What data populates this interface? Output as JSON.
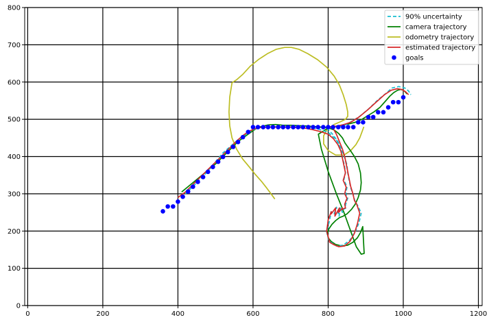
{
  "chart_data": {
    "type": "line",
    "title": "",
    "xlabel": "",
    "ylabel": "",
    "xlim": [
      -8,
      1210
    ],
    "ylim": [
      0,
      800
    ],
    "xticks": [
      0,
      200,
      400,
      600,
      800,
      1000,
      1200
    ],
    "yticks": [
      0,
      100,
      200,
      300,
      400,
      500,
      600,
      700,
      800
    ],
    "xtick_labels": [
      "0",
      "200",
      "400",
      "600",
      "800",
      "1000",
      "1200"
    ],
    "ytick_labels": [
      "0",
      "100",
      "200",
      "300",
      "400",
      "500",
      "600",
      "700",
      "800"
    ],
    "grid": true,
    "legend_position": "top-right",
    "series": [
      {
        "name": "90% uncertainty",
        "kind": "line",
        "style": "dashed",
        "color": "#17becf",
        "x": [
          420,
          470,
          520,
          560,
          585,
          600,
          620,
          660,
          700,
          740,
          770,
          800,
          822,
          834,
          838,
          843,
          846,
          842,
          850,
          847,
          852,
          846,
          848,
          840,
          838,
          833,
          829,
          822,
          816,
          808,
          804,
          800,
          798,
          796,
          802,
          810,
          822,
          840,
          858,
          872,
          882,
          888,
          878,
          872,
          866,
          860,
          856,
          852,
          850,
          844,
          836,
          826,
          812,
          796,
          812,
          828,
          844,
          862,
          884,
          908,
          932,
          952,
          970,
          988,
          1004,
          1014,
          1020
        ],
        "y": [
          300,
          350,
          410,
          445,
          462,
          472,
          478,
          480,
          479,
          478,
          475,
          465,
          445,
          420,
          397,
          378,
          358,
          338,
          318,
          300,
          288,
          270,
          262,
          258,
          250,
          262,
          240,
          264,
          246,
          252,
          230,
          214,
          204,
          198,
          172,
          168,
          160,
          162,
          176,
          198,
          222,
          248,
          270,
          278,
          300,
          316,
          336,
          356,
          378,
          397,
          418,
          440,
          460,
          477,
          479,
          480,
          484,
          494,
          508,
          528,
          552,
          568,
          584,
          588,
          584,
          576,
          566
        ]
      },
      {
        "name": "camera trajectory",
        "kind": "line",
        "style": "solid",
        "color": "#008000",
        "x": [
          410,
          440,
          470,
          500,
          520,
          540,
          560,
          580,
          598,
          610,
          620,
          640,
          660,
          680,
          700,
          720,
          740,
          760,
          780,
          800,
          815,
          828,
          838,
          845,
          858,
          870,
          880,
          886,
          888,
          886,
          880,
          872,
          862,
          850,
          840,
          830,
          820,
          810,
          802,
          798,
          800,
          808,
          820,
          836,
          852,
          866,
          878,
          886,
          892,
          896,
          888,
          875,
          860,
          842,
          822,
          800,
          782,
          774,
          802,
          828,
          852,
          872,
          890,
          906,
          922,
          938,
          952,
          964,
          975,
          985,
          993,
          1000,
          1005,
          1010
        ],
        "y": [
          305,
          330,
          355,
          380,
          400,
          420,
          440,
          455,
          468,
          476,
          480,
          485,
          486,
          484,
          484,
          483,
          482,
          481,
          479,
          477,
          472,
          462,
          450,
          436,
          418,
          400,
          380,
          356,
          330,
          310,
          290,
          272,
          258,
          246,
          240,
          236,
          228,
          218,
          206,
          194,
          182,
          172,
          164,
          160,
          162,
          170,
          182,
          196,
          212,
          140,
          138,
          158,
          200,
          250,
          300,
          360,
          420,
          460,
          478,
          483,
          487,
          492,
          500,
          510,
          520,
          532,
          548,
          562,
          572,
          578,
          580,
          578,
          574,
          568
        ]
      },
      {
        "name": "odometry trajectory",
        "kind": "line",
        "style": "solid",
        "color": "#bcbd22",
        "x": [
          658,
          648,
          636,
          622,
          606,
          590,
          572,
          556,
          544,
          538,
          536,
          538,
          544,
          556,
          572,
          592,
          614,
          638,
          662,
          684,
          702,
          722,
          746,
          772,
          796,
          816,
          830,
          840,
          848,
          852,
          852,
          846,
          834,
          816,
          798,
          788,
          788,
          800,
          820,
          842,
          860,
          874,
          884,
          890,
          895
        ],
        "y": [
          286,
          300,
          316,
          334,
          352,
          372,
          394,
          420,
          450,
          482,
          520,
          560,
          598,
          606,
          620,
          642,
          660,
          676,
          688,
          693,
          693,
          688,
          676,
          660,
          640,
          616,
          592,
          566,
          540,
          520,
          508,
          500,
          494,
          486,
          474,
          456,
          434,
          416,
          404,
          404,
          416,
          432,
          450,
          466,
          480
        ]
      },
      {
        "name": "estimated trajectory",
        "kind": "line",
        "style": "solid",
        "color": "#d62728",
        "x": [
          400,
          420,
          440,
          460,
          480,
          500,
          520,
          540,
          560,
          575,
          590,
          605,
          620,
          640,
          660,
          680,
          700,
          720,
          740,
          760,
          780,
          800,
          814,
          826,
          834,
          838,
          842,
          846,
          840,
          848,
          844,
          850,
          844,
          846,
          836,
          838,
          828,
          830,
          818,
          820,
          808,
          808,
          800,
          798,
          796,
          804,
          814,
          828,
          844,
          858,
          870,
          878,
          884,
          876,
          870,
          866,
          860,
          856,
          852,
          848,
          844,
          838,
          830,
          822,
          812,
          800,
          812,
          826,
          842,
          860,
          882,
          906,
          930,
          950,
          968,
          984,
          996,
          1006,
          1014
        ],
        "y": [
          290,
          305,
          325,
          345,
          365,
          385,
          405,
          425,
          445,
          458,
          468,
          475,
          478,
          479,
          479,
          479,
          479,
          478,
          476,
          472,
          467,
          460,
          448,
          432,
          414,
          395,
          376,
          356,
          336,
          318,
          300,
          288,
          272,
          262,
          258,
          262,
          250,
          262,
          240,
          262,
          246,
          252,
          230,
          214,
          200,
          170,
          164,
          158,
          160,
          172,
          194,
          220,
          248,
          272,
          282,
          300,
          320,
          340,
          360,
          380,
          400,
          420,
          440,
          460,
          478,
          480,
          480,
          482,
          486,
          492,
          506,
          526,
          548,
          566,
          578,
          582,
          580,
          574,
          566
        ]
      },
      {
        "name": "goals",
        "kind": "scatter",
        "color": "#0000ff",
        "x": [
          360,
          373,
          387,
          400,
          413,
          427,
          440,
          453,
          467,
          480,
          493,
          507,
          520,
          533,
          547,
          560,
          573,
          587,
          600,
          613,
          627,
          640,
          653,
          667,
          680,
          693,
          707,
          720,
          733,
          747,
          760,
          773,
          787,
          800,
          813,
          827,
          840,
          853,
          867,
          880,
          893,
          907,
          920,
          933,
          947,
          960,
          973,
          987,
          1000
        ],
        "y": [
          253,
          266,
          266,
          279,
          292,
          306,
          319,
          332,
          345,
          359,
          372,
          386,
          399,
          412,
          426,
          439,
          452,
          466,
          479,
          479,
          479,
          479,
          479,
          479,
          479,
          479,
          479,
          479,
          479,
          479,
          479,
          479,
          479,
          479,
          479,
          479,
          479,
          479,
          479,
          492,
          492,
          506,
          506,
          519,
          519,
          532,
          546,
          546,
          559
        ]
      }
    ]
  }
}
